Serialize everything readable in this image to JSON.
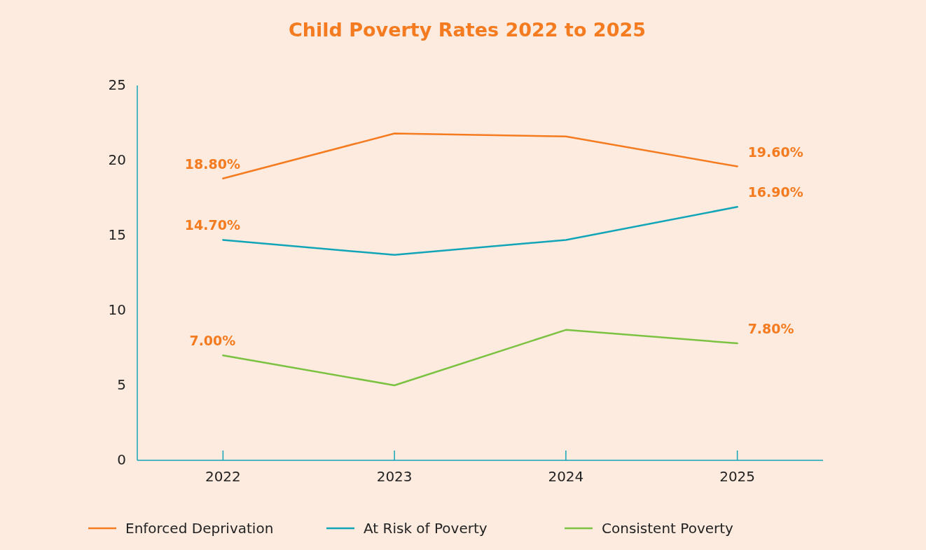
{
  "chart_data": {
    "type": "line",
    "title": "Child Poverty Rates 2022 to 2025",
    "categories": [
      "2022",
      "2023",
      "2024",
      "2025"
    ],
    "series": [
      {
        "name": "Enforced Deprivation",
        "color": "#f47b20",
        "values": [
          18.8,
          21.8,
          21.6,
          19.6
        ],
        "value_labels": [
          "18.80%",
          null,
          null,
          "19.60%"
        ]
      },
      {
        "name": "At Risk of Poverty",
        "color": "#12a5b8",
        "values": [
          14.7,
          13.7,
          14.7,
          16.9
        ],
        "value_labels": [
          "14.70%",
          null,
          null,
          "16.90%"
        ]
      },
      {
        "name": "Consistent Poverty",
        "color": "#7cc242",
        "values": [
          7.0,
          5.0,
          8.7,
          7.8
        ],
        "value_labels": [
          "7.00%",
          null,
          null,
          "7.80%"
        ]
      }
    ],
    "ylim": [
      0,
      25
    ],
    "yticks": [
      0,
      5,
      10,
      15,
      20,
      25
    ],
    "grid": false,
    "legend": "bottom",
    "marker": "none"
  }
}
